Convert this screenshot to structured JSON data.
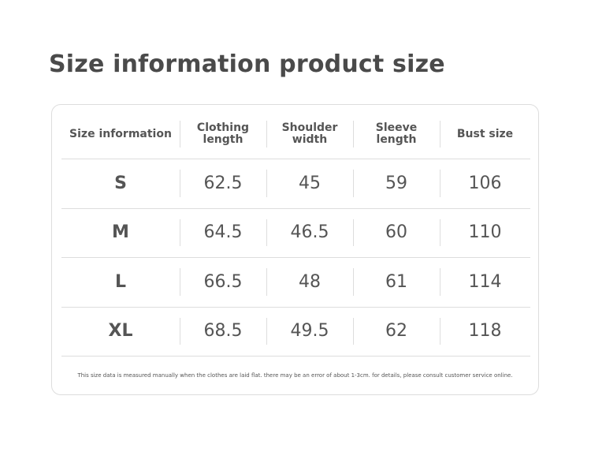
{
  "header": {
    "title": "Size information product size"
  },
  "table": {
    "columns": [
      "Size information",
      "Clothing\nlength",
      "Shoulder\nwidth",
      "Sleeve\nlength",
      "Bust size"
    ],
    "rows": [
      [
        "S",
        "62.5",
        "45",
        "59",
        "106"
      ],
      [
        "M",
        "64.5",
        "46.5",
        "60",
        "110"
      ],
      [
        "L",
        "66.5",
        "48",
        "61",
        "114"
      ],
      [
        "XL",
        "68.5",
        "49.5",
        "62",
        "118"
      ]
    ]
  },
  "footnote": "This size data is measured manually when the clothes are laid flat. there may be an error of about 1-3cm. for details, please consult customer service online."
}
